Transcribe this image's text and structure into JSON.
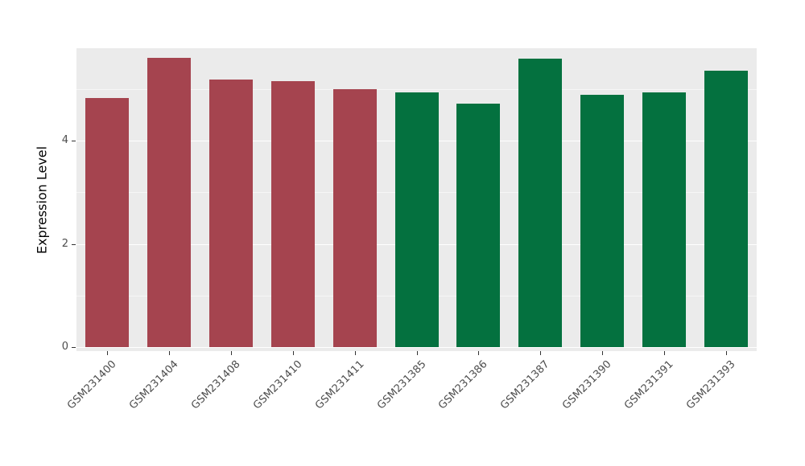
{
  "chart_data": {
    "type": "bar",
    "title": "",
    "xlabel": "",
    "ylabel": "Expression Level",
    "ylim": [
      0,
      5.85
    ],
    "yticks": [
      0,
      2,
      4
    ],
    "minor_gridlines": [
      1,
      3,
      5
    ],
    "grid": "on",
    "legend": "none",
    "categories": [
      "GSM231400",
      "GSM231404",
      "GSM231408",
      "GSM231410",
      "GSM231411",
      "GSM231385",
      "GSM231386",
      "GSM231387",
      "GSM231390",
      "GSM231391",
      "GSM231393"
    ],
    "values": [
      4.83,
      5.6,
      5.18,
      5.15,
      5.0,
      4.93,
      4.72,
      5.59,
      4.89,
      4.93,
      5.35
    ],
    "groups": [
      "red",
      "red",
      "red",
      "red",
      "red",
      "green",
      "green",
      "green",
      "green",
      "green",
      "green"
    ]
  },
  "colors": {
    "red": "#A5444F",
    "green": "#04713F",
    "panel_background": "#EBEBEB",
    "gridline": "#FFFFFF",
    "axis_text": "#4D4D4D",
    "tick_mark": "#333333"
  }
}
